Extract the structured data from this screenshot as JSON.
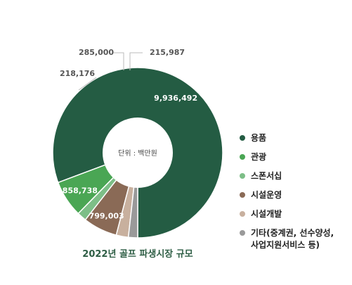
{
  "chart_data": {
    "type": "pie",
    "variant": "donut",
    "title": "2022년 골프 파생시장 규모",
    "center_label": "단위 : 백만원",
    "slices": [
      {
        "name": "용품",
        "value": 9936492,
        "label": "9,936,492",
        "color": "#245c43"
      },
      {
        "name": "관광",
        "value": 858738,
        "label": "858,738",
        "color": "#4aa654"
      },
      {
        "name": "스폰서십",
        "value": 218176,
        "label": "218,176",
        "color": "#7dbe87"
      },
      {
        "name": "시설운영",
        "value": 799003,
        "label": "799,003",
        "color": "#8a6a56"
      },
      {
        "name": "시설개발",
        "value": 285000,
        "label": "285,000",
        "color": "#c8b09e"
      },
      {
        "name": "기타(중계권, 선수양성,\n사업지원서비스 등)",
        "value": 215987,
        "label": "215,987",
        "color": "#9a9a9a"
      }
    ],
    "legend_position": "right"
  }
}
